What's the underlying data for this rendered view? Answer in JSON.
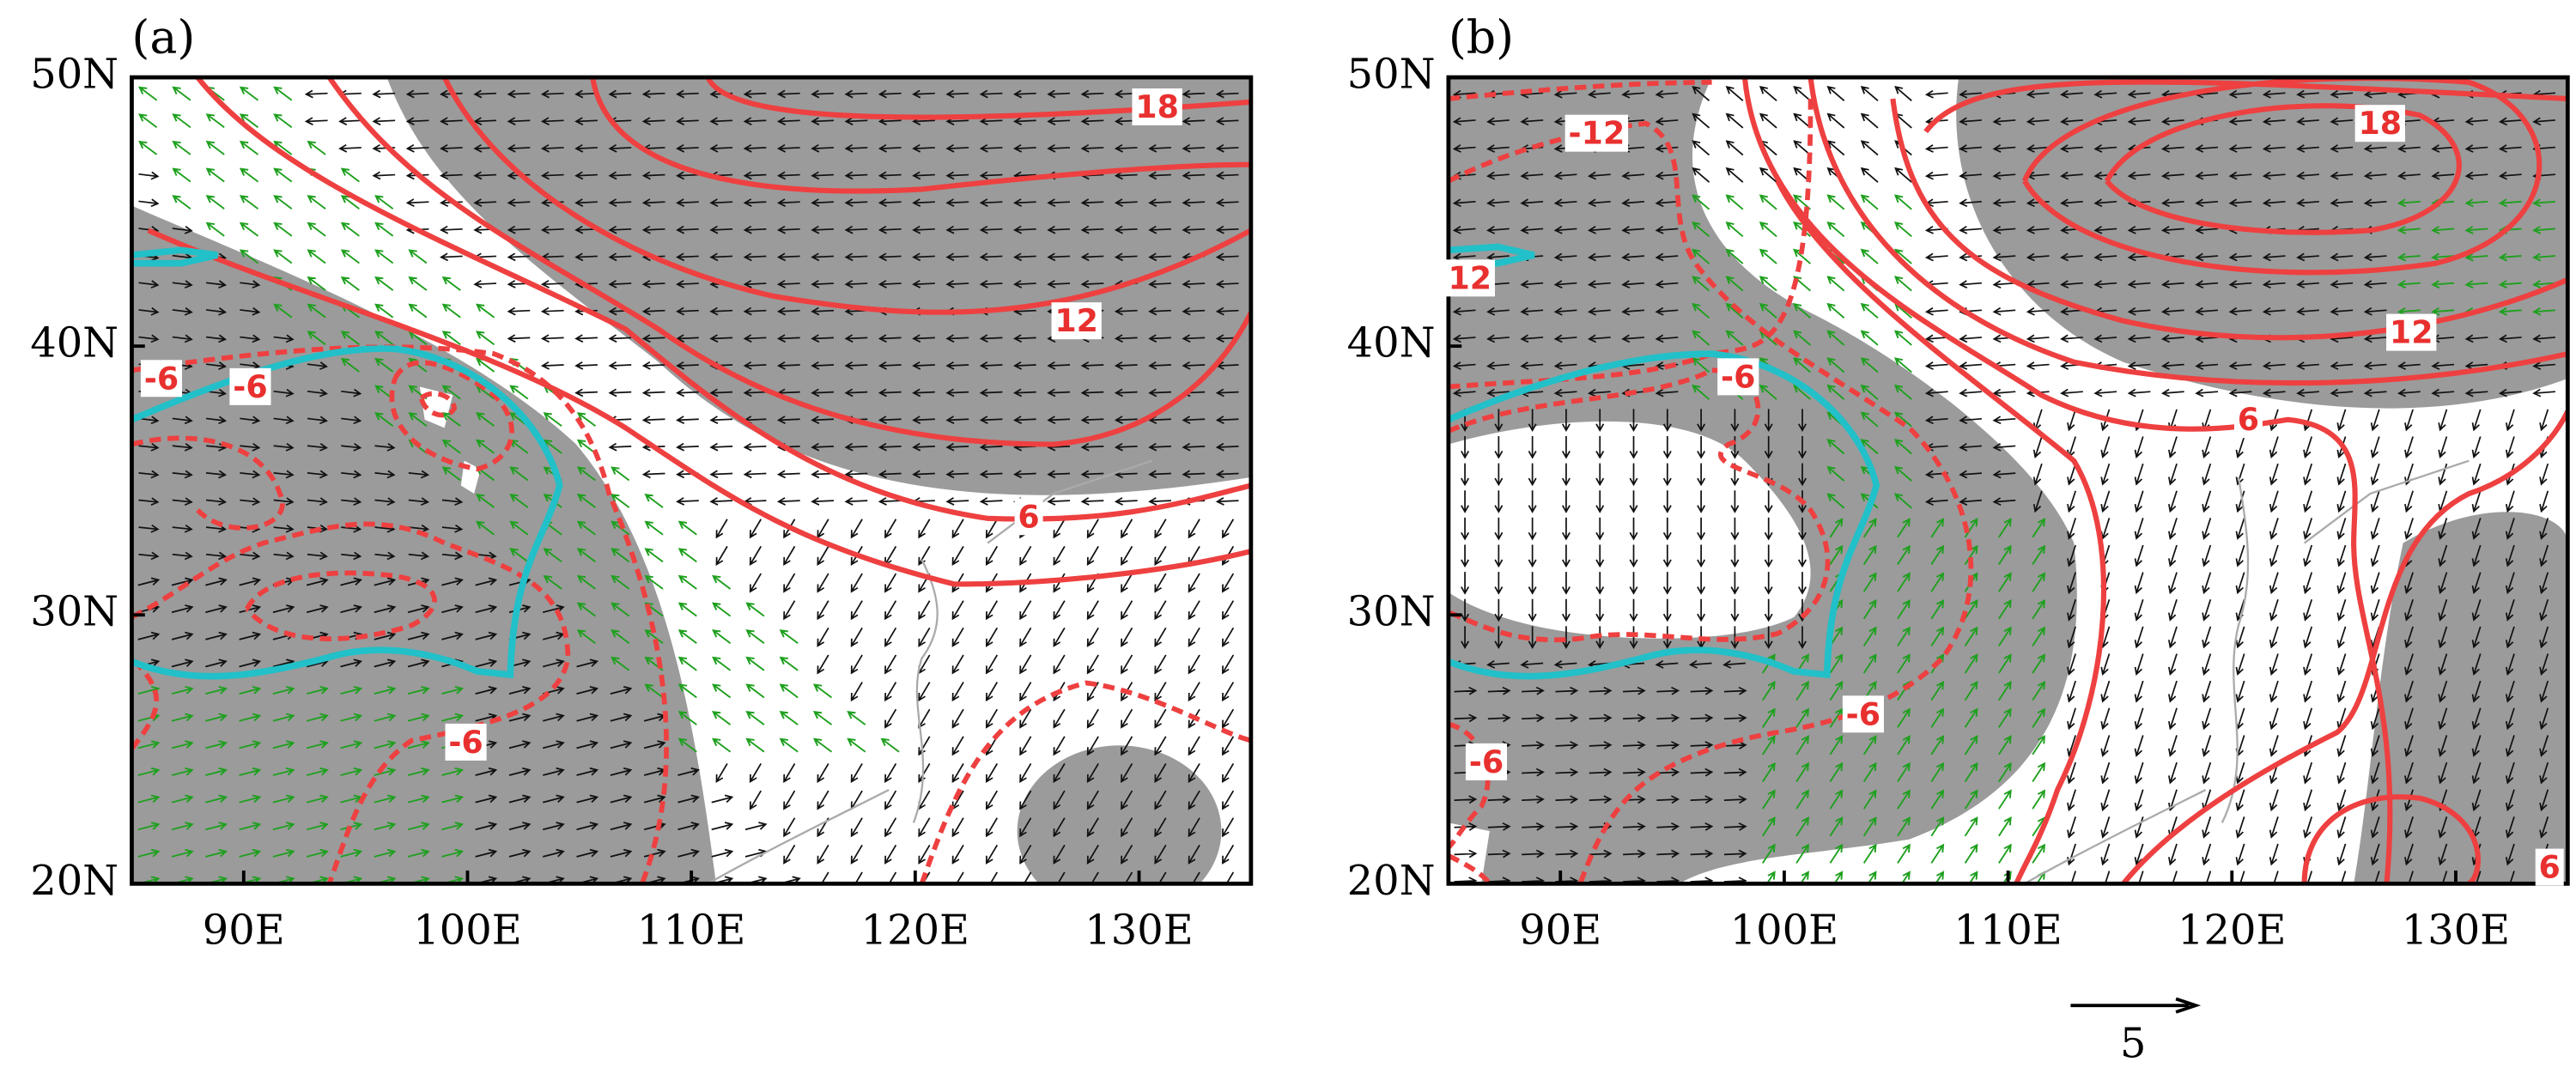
{
  "panels": [
    {
      "label": "(a)",
      "lat_ticks": [
        "50N",
        "40N",
        "30N",
        "20N"
      ],
      "lon_ticks": [
        "90E",
        "100E",
        "110E",
        "120E",
        "130E"
      ],
      "contour_labels": [
        "18",
        "12",
        "6",
        "-6",
        "-6",
        "-6"
      ]
    },
    {
      "label": "(b)",
      "lat_ticks": [
        "50N",
        "40N",
        "30N",
        "20N"
      ],
      "lon_ticks": [
        "90E",
        "100E",
        "110E",
        "120E",
        "130E"
      ],
      "contour_labels": [
        "-12",
        "18",
        "12",
        "6",
        "-6",
        "-6",
        "-6",
        "12",
        "6"
      ]
    }
  ],
  "reference_vector": {
    "label": "5"
  }
}
